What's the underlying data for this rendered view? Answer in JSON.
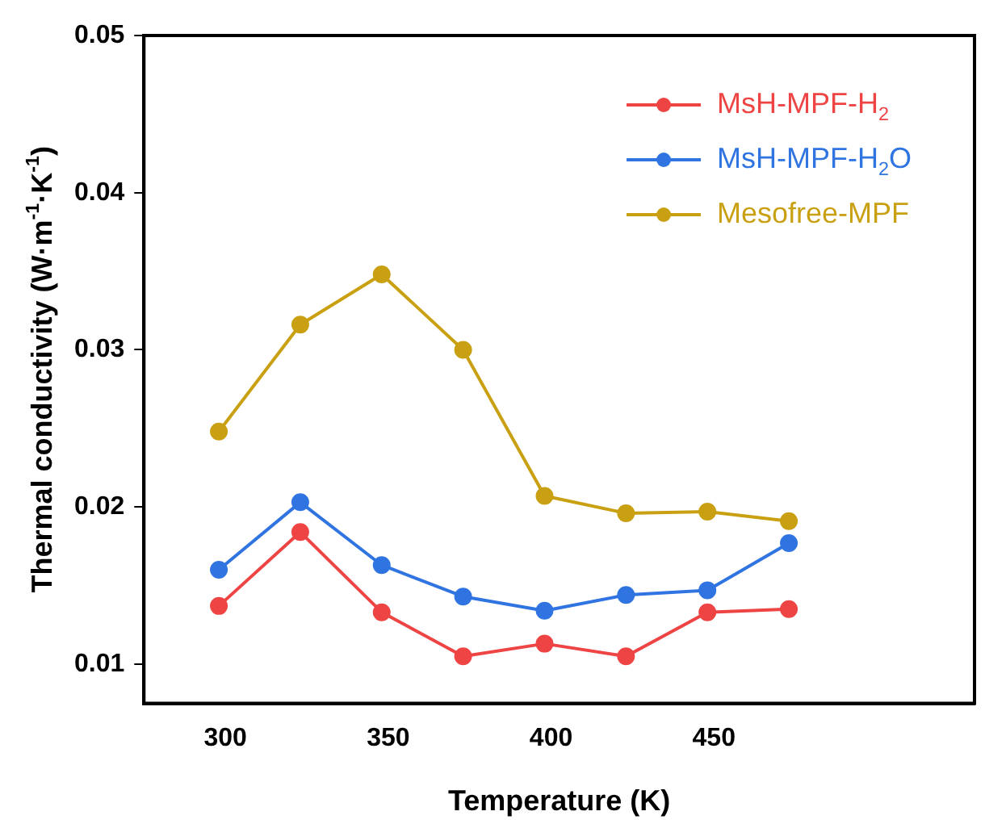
{
  "chart_data": {
    "type": "line",
    "xlabel": "Temperature (K)",
    "ylabel": "Thermal conductivity (W·m$^{-1}$·K$^{-1}$)",
    "x": [
      298,
      323,
      348,
      373,
      398,
      423,
      448,
      473
    ],
    "series": [
      {
        "name": "MsH-MPF-H$_{2}$",
        "color": "#ee4444",
        "values": [
          0.0137,
          0.0184,
          0.0133,
          0.0105,
          0.0113,
          0.0105,
          0.0133,
          0.0135
        ]
      },
      {
        "name": "MsH-MPF-H$_{2}$O",
        "color": "#2f74e0",
        "values": [
          0.016,
          0.0203,
          0.0163,
          0.0143,
          0.0134,
          0.0144,
          0.0147,
          0.0177
        ]
      },
      {
        "name": "Mesofree-MPF",
        "color": "#c9a012",
        "values": [
          0.0248,
          0.0316,
          0.0348,
          0.03,
          0.0207,
          0.0196,
          0.0197,
          0.0191
        ]
      }
    ],
    "xlim": [
      275,
      530
    ],
    "xticks": [
      300,
      350,
      400,
      450
    ],
    "ylim": [
      0.0075,
      0.05
    ],
    "yticks": [
      0.01,
      0.02,
      0.03,
      0.04,
      0.05
    ],
    "grid": false,
    "legend": "top right",
    "marker": "circle",
    "line_style": "solid"
  }
}
